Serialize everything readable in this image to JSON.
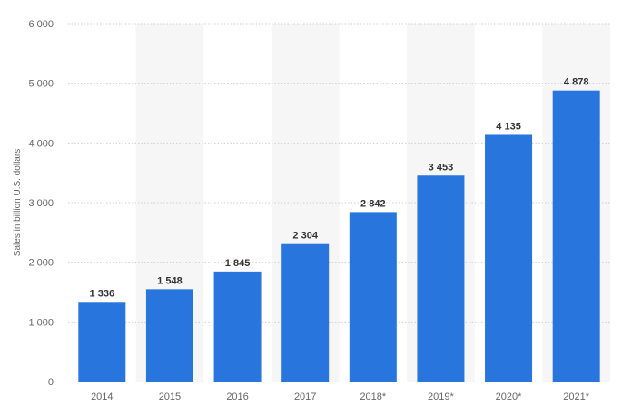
{
  "chart_data": {
    "type": "bar",
    "categories": [
      "2014",
      "2015",
      "2016",
      "2017",
      "2018*",
      "2019*",
      "2020*",
      "2021*"
    ],
    "values": [
      1336,
      1548,
      1845,
      2304,
      2842,
      3453,
      4135,
      4878
    ],
    "value_labels": [
      "1 336",
      "1 548",
      "1 845",
      "2 304",
      "2 842",
      "3 453",
      "4 135",
      "4 878"
    ],
    "title": "",
    "xlabel": "",
    "ylabel": "Sales in billion U.S. dollars",
    "ylim": [
      0,
      6000
    ],
    "yticks": [
      0,
      1000,
      2000,
      3000,
      4000,
      5000,
      6000
    ],
    "ytick_labels": [
      "0",
      "1 000",
      "2 000",
      "3 000",
      "4 000",
      "5 000",
      "6 000"
    ],
    "grid": true,
    "colors": {
      "bar": "#2876dd",
      "band": "#f6f6f6",
      "grid": "#cfcfcf",
      "tick_text": "#666666",
      "value_text": "#333333"
    }
  }
}
